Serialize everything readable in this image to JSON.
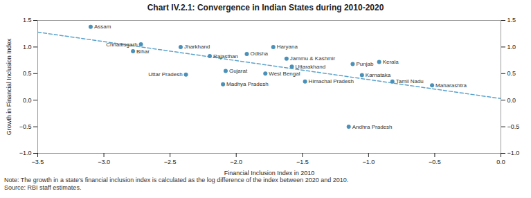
{
  "chart_data": {
    "type": "scatter",
    "title": "Chart IV.2.1: Convergence in Indian States during 2010-2020",
    "xlabel": "Financial Inclusion Index in 2010",
    "ylabel": "Growth in Financial Inclusion Index",
    "note": "Note: The growth in a state’s financial inclusion index is calculated as the log difference of the index between 2020 and 2010.",
    "source": "Source: RBI staff estimates.",
    "xlim": [
      -3.5,
      0.0
    ],
    "ylim": [
      -1.0,
      1.5
    ],
    "xticks": [
      {
        "value": -3.5,
        "label": "−3.5"
      },
      {
        "value": -3.0,
        "label": "−3.0"
      },
      {
        "value": -2.5,
        "label": "−2.5"
      },
      {
        "value": -2.0,
        "label": "−2.0"
      },
      {
        "value": -1.5,
        "label": "−1.5"
      },
      {
        "value": -1.0,
        "label": "−1.0"
      },
      {
        "value": -0.5,
        "label": "−0.5"
      },
      {
        "value": 0.0,
        "label": "0.0"
      }
    ],
    "yticks": [
      {
        "value": -1.0,
        "label": "−1.0"
      },
      {
        "value": -0.5,
        "label": "−0.5"
      },
      {
        "value": 0.0,
        "label": "0.0"
      },
      {
        "value": 0.5,
        "label": "0.5"
      },
      {
        "value": 1.0,
        "label": "1.0"
      },
      {
        "value": 1.5,
        "label": "1.5"
      }
    ],
    "color": "#4a90b8",
    "points": [
      {
        "label": "Assam",
        "x": -3.1,
        "y": 1.38
      },
      {
        "label": "Chhattisgarh",
        "x": -2.72,
        "y": 1.05
      },
      {
        "label": "Bihar",
        "x": -2.78,
        "y": 0.92
      },
      {
        "label": "Jharkhand",
        "x": -2.42,
        "y": 1.0
      },
      {
        "label": "Rajasthan",
        "x": -2.2,
        "y": 0.83
      },
      {
        "label": "Uttar Pradesh",
        "x": -2.38,
        "y": 0.48
      },
      {
        "label": "Madhya Pradesh",
        "x": -2.1,
        "y": 0.3
      },
      {
        "label": "Gujarat",
        "x": -2.08,
        "y": 0.55
      },
      {
        "label": "Odisha",
        "x": -1.92,
        "y": 0.87
      },
      {
        "label": "Haryana",
        "x": -1.72,
        "y": 1.0
      },
      {
        "label": "Jammu & Kashmir",
        "x": -1.62,
        "y": 0.78
      },
      {
        "label": "West Bengal",
        "x": -1.78,
        "y": 0.5
      },
      {
        "label": "Uttarakhand",
        "x": -1.58,
        "y": 0.63
      },
      {
        "label": "Himachal Pradesh",
        "x": -1.48,
        "y": 0.35
      },
      {
        "label": "Punjab",
        "x": -1.12,
        "y": 0.68
      },
      {
        "label": "Karnataka",
        "x": -1.05,
        "y": 0.47
      },
      {
        "label": "Tamil Nadu",
        "x": -0.82,
        "y": 0.35
      },
      {
        "label": "Kerala",
        "x": -0.92,
        "y": 0.72
      },
      {
        "label": "Maharashtra",
        "x": -0.52,
        "y": 0.28
      },
      {
        "label": "Andhra Pradesh",
        "x": -1.15,
        "y": -0.5
      }
    ],
    "trend": {
      "type": "line",
      "x": [
        -3.5,
        0.0
      ],
      "y": [
        1.28,
        0.03
      ],
      "color": "#5ba3cc",
      "line_style": "dashed"
    }
  }
}
